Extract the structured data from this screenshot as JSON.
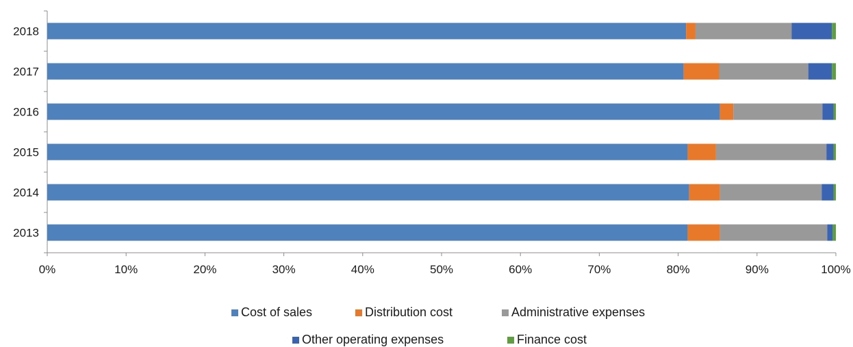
{
  "chart_data": {
    "type": "bar",
    "orientation": "horizontal",
    "stacked": "percent",
    "categories": [
      "2018",
      "2017",
      "2016",
      "2015",
      "2014",
      "2013"
    ],
    "series": [
      {
        "name": "Cost of sales",
        "color": "#4f81bd",
        "values": [
          81.0,
          80.7,
          85.3,
          81.2,
          81.4,
          81.2
        ]
      },
      {
        "name": "Distribution cost",
        "color": "#e8782a",
        "values": [
          1.2,
          4.5,
          1.7,
          3.6,
          3.9,
          4.1
        ]
      },
      {
        "name": "Administrative expenses",
        "color": "#999999",
        "values": [
          12.2,
          11.3,
          11.3,
          14.0,
          12.9,
          13.6
        ]
      },
      {
        "name": "Other operating expenses",
        "color": "#3a63b2",
        "values": [
          5.1,
          3.0,
          1.4,
          0.9,
          1.5,
          0.7
        ]
      },
      {
        "name": "Finance cost",
        "color": "#5f9e3e",
        "values": [
          0.5,
          0.5,
          0.3,
          0.3,
          0.3,
          0.4
        ]
      }
    ],
    "x_axis": {
      "ticks": [
        "0%",
        "10%",
        "20%",
        "30%",
        "40%",
        "50%",
        "60%",
        "70%",
        "80%",
        "90%",
        "100%"
      ],
      "range": [
        0,
        100
      ]
    },
    "grid": false,
    "legend_position": "bottom"
  }
}
